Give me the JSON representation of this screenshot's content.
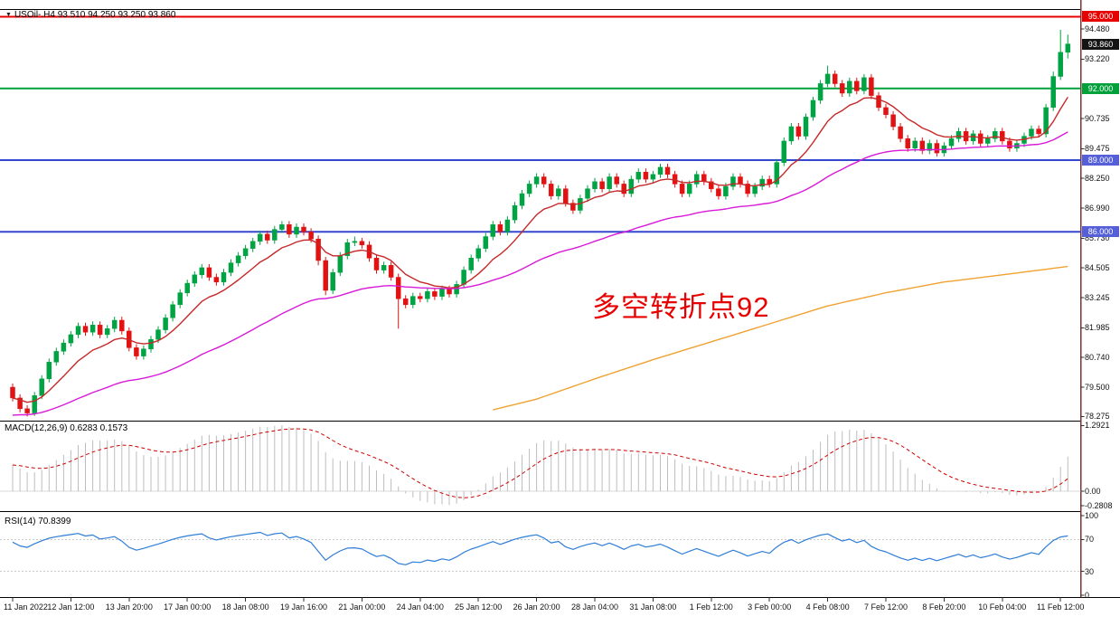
{
  "header": {
    "symbol": "USOil-.H4",
    "open": "93.510",
    "high": "94.250",
    "low": "93.250",
    "close": "93.860",
    "line": "USOil-.H4 93.510 94.250 93.250 93.860"
  },
  "annotation": {
    "text": "多空转折点92",
    "color": "#e60000"
  },
  "hlines": [
    {
      "value": 95.0,
      "color": "#e60000"
    },
    {
      "value": 92.0,
      "color": "#00a13a"
    },
    {
      "value": 89.0,
      "color": "#3347cf"
    },
    {
      "value": 86.0,
      "color": "#3347cf"
    }
  ],
  "price_axis": {
    "labels": [
      {
        "text": "94.480",
        "value": 94.48
      },
      {
        "text": "93.220",
        "value": 93.22
      },
      {
        "text": "90.735",
        "value": 90.735
      },
      {
        "text": "89.475",
        "value": 89.475
      },
      {
        "text": "88.250",
        "value": 88.25
      },
      {
        "text": "86.990",
        "value": 86.99
      },
      {
        "text": "85.730",
        "value": 85.73
      },
      {
        "text": "84.505",
        "value": 84.505
      },
      {
        "text": "83.245",
        "value": 83.245
      },
      {
        "text": "81.985",
        "value": 81.985
      },
      {
        "text": "80.740",
        "value": 80.74
      },
      {
        "text": "79.500",
        "value": 79.5
      },
      {
        "text": "78.275",
        "value": 78.275
      }
    ],
    "tags": [
      {
        "text": "95.000",
        "value": 95.0,
        "bg": "#e60000"
      },
      {
        "text": "93.860",
        "value": 93.86,
        "bg": "#141414"
      },
      {
        "text": "92.000",
        "value": 92.0,
        "bg": "#00a13a"
      },
      {
        "text": "89.000",
        "value": 89.0,
        "bg": "#5560d8"
      },
      {
        "text": "86.000",
        "value": 86.0,
        "bg": "#5560d8"
      }
    ]
  },
  "macd_panel": {
    "label": "MACD(12,26,9) 0.6283 0.1573",
    "current_macd": 0.6283,
    "current_signal": 0.1573,
    "axis": [
      {
        "text": "1.2921",
        "value": 1.2921
      },
      {
        "text": "0.00",
        "value": 0
      },
      {
        "text": "-0.2808",
        "value": -0.2808
      }
    ]
  },
  "rsi_panel": {
    "label": "RSI(14) 70.8399",
    "current": 70.8399,
    "axis": [
      {
        "text": "100",
        "value": 100
      },
      {
        "text": "70",
        "value": 70
      },
      {
        "text": "30",
        "value": 30
      },
      {
        "text": "0",
        "value": 0
      }
    ],
    "levels": [
      70,
      30
    ]
  },
  "time_axis": {
    "labels": [
      {
        "text": "11 Jan 2022",
        "index": 0
      },
      {
        "text": "12 Jan 12:00",
        "index": 8
      },
      {
        "text": "13 Jan 20:00",
        "index": 16
      },
      {
        "text": "17 Jan 00:00",
        "index": 24
      },
      {
        "text": "18 Jan 08:00",
        "index": 32
      },
      {
        "text": "19 Jan 16:00",
        "index": 40
      },
      {
        "text": "21 Jan 00:00",
        "index": 48
      },
      {
        "text": "24 Jan 04:00",
        "index": 56
      },
      {
        "text": "25 Jan 12:00",
        "index": 64
      },
      {
        "text": "26 Jan 20:00",
        "index": 72
      },
      {
        "text": "28 Jan 04:00",
        "index": 80
      },
      {
        "text": "31 Jan 08:00",
        "index": 88
      },
      {
        "text": "1 Feb 12:00",
        "index": 96
      },
      {
        "text": "3 Feb 00:00",
        "index": 104
      },
      {
        "text": "4 Feb 08:00",
        "index": 112
      },
      {
        "text": "7 Feb 12:00",
        "index": 120
      },
      {
        "text": "8 Feb 20:00",
        "index": 128
      },
      {
        "text": "10 Feb 04:00",
        "index": 136
      },
      {
        "text": "11 Feb 12:00",
        "index": 144
      }
    ]
  },
  "chart_data": [
    {
      "type": "candlestick",
      "title": "USOil-.H4",
      "symbol": "USOil",
      "timeframe": "H4",
      "ylim": [
        78.1,
        95.32
      ],
      "up_color": "#00a344",
      "down_color": "#e31212",
      "candles": [
        [
          79.5,
          79.65,
          78.9,
          79.05
        ],
        [
          79.05,
          79.2,
          78.45,
          78.6
        ],
        [
          78.6,
          78.75,
          78.275,
          78.42
        ],
        [
          78.42,
          79.3,
          78.3,
          79.15
        ],
        [
          79.15,
          80.0,
          79.0,
          79.85
        ],
        [
          79.85,
          80.7,
          79.7,
          80.55
        ],
        [
          80.55,
          81.15,
          80.4,
          81.0
        ],
        [
          81.0,
          81.5,
          80.85,
          81.35
        ],
        [
          81.35,
          81.85,
          81.2,
          81.7
        ],
        [
          81.7,
          82.2,
          81.55,
          82.05
        ],
        [
          82.05,
          82.2,
          81.65,
          81.8
        ],
        [
          81.8,
          82.25,
          81.65,
          82.1
        ],
        [
          82.1,
          82.25,
          81.55,
          81.7
        ],
        [
          81.7,
          82.1,
          81.55,
          81.95
        ],
        [
          81.95,
          82.45,
          81.8,
          82.3
        ],
        [
          82.3,
          82.45,
          81.7,
          81.85
        ],
        [
          81.85,
          82.0,
          81.0,
          81.15
        ],
        [
          81.15,
          81.3,
          80.65,
          80.8
        ],
        [
          80.8,
          81.25,
          80.65,
          81.1
        ],
        [
          81.1,
          81.65,
          80.95,
          81.5
        ],
        [
          81.5,
          82.05,
          81.35,
          81.9
        ],
        [
          81.9,
          82.55,
          81.75,
          82.4
        ],
        [
          82.4,
          83.1,
          82.25,
          82.95
        ],
        [
          82.95,
          83.6,
          82.8,
          83.45
        ],
        [
          83.45,
          84.0,
          83.3,
          83.85
        ],
        [
          83.85,
          84.35,
          83.7,
          84.2
        ],
        [
          84.2,
          84.65,
          84.05,
          84.5
        ],
        [
          84.5,
          84.65,
          83.95,
          84.1
        ],
        [
          84.1,
          84.25,
          83.75,
          83.9
        ],
        [
          83.9,
          84.45,
          83.75,
          84.3
        ],
        [
          84.3,
          84.85,
          84.15,
          84.7
        ],
        [
          84.7,
          85.15,
          84.55,
          85.0
        ],
        [
          85.0,
          85.45,
          84.85,
          85.3
        ],
        [
          85.3,
          85.75,
          85.15,
          85.6
        ],
        [
          85.6,
          86.05,
          85.45,
          85.9
        ],
        [
          85.9,
          86.05,
          85.5,
          85.65
        ],
        [
          85.65,
          86.25,
          85.5,
          86.1
        ],
        [
          86.1,
          86.45,
          85.95,
          86.3
        ],
        [
          86.3,
          86.45,
          85.75,
          85.9
        ],
        [
          85.9,
          86.35,
          85.75,
          86.2
        ],
        [
          86.2,
          86.35,
          85.85,
          86.0
        ],
        [
          86.0,
          86.15,
          85.55,
          85.7
        ],
        [
          85.7,
          85.85,
          84.6,
          84.8
        ],
        [
          84.8,
          84.95,
          83.35,
          83.55
        ],
        [
          83.55,
          84.45,
          83.4,
          84.3
        ],
        [
          84.3,
          85.15,
          84.15,
          85.0
        ],
        [
          85.0,
          85.7,
          84.85,
          85.55
        ],
        [
          85.55,
          85.8,
          85.4,
          85.6
        ],
        [
          85.6,
          85.75,
          85.3,
          85.45
        ],
        [
          85.45,
          85.6,
          84.75,
          84.9
        ],
        [
          84.9,
          85.05,
          84.25,
          84.4
        ],
        [
          84.4,
          84.75,
          84.25,
          84.6
        ],
        [
          84.6,
          84.75,
          83.95,
          84.1
        ],
        [
          84.1,
          84.25,
          81.95,
          83.2
        ],
        [
          83.2,
          83.35,
          82.8,
          82.95
        ],
        [
          82.95,
          83.45,
          82.8,
          83.3
        ],
        [
          83.3,
          83.45,
          83.05,
          83.2
        ],
        [
          83.2,
          83.65,
          83.05,
          83.5
        ],
        [
          83.5,
          83.65,
          83.15,
          83.3
        ],
        [
          83.3,
          83.75,
          83.15,
          83.6
        ],
        [
          83.6,
          83.75,
          83.25,
          83.4
        ],
        [
          83.4,
          83.95,
          83.25,
          83.8
        ],
        [
          83.8,
          84.55,
          83.65,
          84.4
        ],
        [
          84.4,
          85.05,
          84.25,
          84.9
        ],
        [
          84.9,
          85.45,
          84.75,
          85.3
        ],
        [
          85.3,
          85.95,
          85.15,
          85.8
        ],
        [
          85.8,
          86.45,
          85.65,
          86.3
        ],
        [
          86.3,
          86.45,
          85.85,
          86.0
        ],
        [
          86.0,
          86.65,
          85.85,
          86.5
        ],
        [
          86.5,
          87.25,
          86.35,
          87.1
        ],
        [
          87.1,
          87.75,
          86.95,
          87.6
        ],
        [
          87.6,
          88.15,
          87.45,
          88.0
        ],
        [
          88.0,
          88.45,
          87.85,
          88.3
        ],
        [
          88.3,
          88.45,
          87.85,
          88.0
        ],
        [
          88.0,
          88.15,
          87.35,
          87.5
        ],
        [
          87.5,
          87.95,
          87.35,
          87.8
        ],
        [
          87.8,
          87.95,
          87.05,
          87.2
        ],
        [
          87.2,
          87.35,
          86.75,
          86.9
        ],
        [
          86.9,
          87.55,
          86.75,
          87.4
        ],
        [
          87.4,
          87.95,
          87.25,
          87.8
        ],
        [
          87.8,
          88.25,
          87.65,
          88.1
        ],
        [
          88.1,
          88.25,
          87.65,
          87.8
        ],
        [
          87.8,
          88.45,
          87.65,
          88.3
        ],
        [
          88.3,
          88.45,
          87.85,
          88.0
        ],
        [
          88.0,
          88.15,
          87.45,
          87.6
        ],
        [
          87.6,
          88.35,
          87.45,
          88.2
        ],
        [
          88.2,
          88.65,
          88.05,
          88.5
        ],
        [
          88.5,
          88.65,
          88.05,
          88.2
        ],
        [
          88.2,
          88.55,
          88.05,
          88.4
        ],
        [
          88.4,
          88.85,
          88.25,
          88.7
        ],
        [
          88.7,
          88.85,
          88.25,
          88.4
        ],
        [
          88.4,
          88.55,
          87.85,
          88.0
        ],
        [
          88.0,
          88.15,
          87.45,
          87.6
        ],
        [
          87.6,
          88.15,
          87.45,
          88.0
        ],
        [
          88.0,
          88.55,
          87.85,
          88.4
        ],
        [
          88.4,
          88.55,
          87.95,
          88.1
        ],
        [
          88.1,
          88.25,
          87.65,
          87.8
        ],
        [
          87.8,
          87.95,
          87.35,
          87.5
        ],
        [
          87.5,
          88.05,
          87.35,
          87.9
        ],
        [
          87.9,
          88.45,
          87.75,
          88.3
        ],
        [
          88.3,
          88.45,
          87.85,
          88.0
        ],
        [
          88.0,
          88.15,
          87.45,
          87.6
        ],
        [
          87.6,
          88.05,
          87.45,
          87.9
        ],
        [
          87.9,
          88.35,
          87.75,
          88.2
        ],
        [
          88.2,
          88.35,
          87.85,
          88.0
        ],
        [
          88.0,
          89.05,
          87.85,
          88.9
        ],
        [
          88.9,
          89.95,
          88.75,
          89.8
        ],
        [
          89.8,
          90.55,
          89.65,
          90.4
        ],
        [
          90.4,
          90.55,
          89.85,
          90.0
        ],
        [
          90.0,
          90.95,
          89.85,
          90.8
        ],
        [
          90.8,
          91.65,
          90.65,
          91.5
        ],
        [
          91.5,
          92.35,
          91.35,
          92.2
        ],
        [
          92.2,
          92.95,
          92.05,
          92.6
        ],
        [
          92.6,
          92.75,
          92.05,
          92.2
        ],
        [
          92.2,
          92.35,
          91.65,
          91.8
        ],
        [
          91.8,
          92.45,
          91.65,
          92.3
        ],
        [
          92.3,
          92.45,
          91.75,
          91.9
        ],
        [
          91.9,
          92.6,
          91.75,
          92.45
        ],
        [
          92.45,
          92.6,
          91.55,
          91.7
        ],
        [
          91.7,
          91.85,
          91.05,
          91.2
        ],
        [
          91.2,
          91.35,
          90.75,
          90.9
        ],
        [
          90.9,
          91.05,
          90.25,
          90.4
        ],
        [
          90.4,
          90.55,
          89.75,
          89.9
        ],
        [
          89.9,
          90.05,
          89.35,
          89.5
        ],
        [
          89.5,
          89.95,
          89.35,
          89.8
        ],
        [
          89.8,
          89.95,
          89.25,
          89.4
        ],
        [
          89.4,
          89.85,
          89.25,
          89.7
        ],
        [
          89.7,
          89.85,
          89.15,
          89.3
        ],
        [
          89.3,
          89.75,
          89.15,
          89.6
        ],
        [
          89.6,
          90.05,
          89.45,
          89.9
        ],
        [
          89.9,
          90.35,
          89.75,
          90.2
        ],
        [
          90.2,
          90.35,
          89.65,
          89.8
        ],
        [
          89.8,
          90.25,
          89.65,
          90.1
        ],
        [
          90.1,
          90.25,
          89.55,
          89.7
        ],
        [
          89.7,
          90.05,
          89.55,
          89.9
        ],
        [
          89.9,
          90.35,
          89.75,
          90.2
        ],
        [
          90.2,
          90.35,
          89.65,
          89.8
        ],
        [
          89.8,
          89.95,
          89.35,
          89.5
        ],
        [
          89.5,
          89.85,
          89.35,
          89.7
        ],
        [
          89.7,
          90.15,
          89.55,
          90.0
        ],
        [
          90.0,
          90.45,
          89.85,
          90.3
        ],
        [
          90.3,
          90.45,
          89.95,
          90.1
        ],
        [
          90.1,
          91.35,
          89.95,
          91.2
        ],
        [
          91.2,
          92.7,
          91.05,
          92.5
        ],
        [
          92.5,
          94.45,
          92.35,
          93.51
        ],
        [
          93.51,
          94.25,
          93.25,
          93.86
        ]
      ],
      "overlays": [
        {
          "name": "ma-fast",
          "style": "ema",
          "period": 10,
          "color": "#c62828"
        },
        {
          "name": "ma-mid",
          "style": "ema",
          "period": 45,
          "seed": 78.3,
          "color": "#d81bd8"
        },
        {
          "name": "ma-slow",
          "style": "points",
          "color": "#efa231",
          "points": [
            [
              66,
              78.55
            ],
            [
              72,
              79.0
            ],
            [
              80,
              79.85
            ],
            [
              88,
              80.65
            ],
            [
              96,
              81.4
            ],
            [
              104,
              82.15
            ],
            [
              112,
              82.9
            ],
            [
              120,
              83.45
            ],
            [
              128,
              83.9
            ],
            [
              136,
              84.2
            ],
            [
              145,
              84.55
            ]
          ]
        }
      ]
    },
    {
      "type": "bar",
      "name": "MACD",
      "params": [
        12,
        26,
        9
      ],
      "derived_from": "candles",
      "current": [
        0.6283,
        0.1573
      ],
      "ylim": [
        -0.35,
        1.35
      ],
      "bar_color": "#bdbdbd",
      "signal_color": "#cc0000"
    },
    {
      "type": "line",
      "name": "RSI",
      "params": [
        14
      ],
      "derived_from": "candles",
      "current": 70.8399,
      "ylim": [
        0,
        100
      ],
      "line_color": "#2f7ed8"
    }
  ]
}
